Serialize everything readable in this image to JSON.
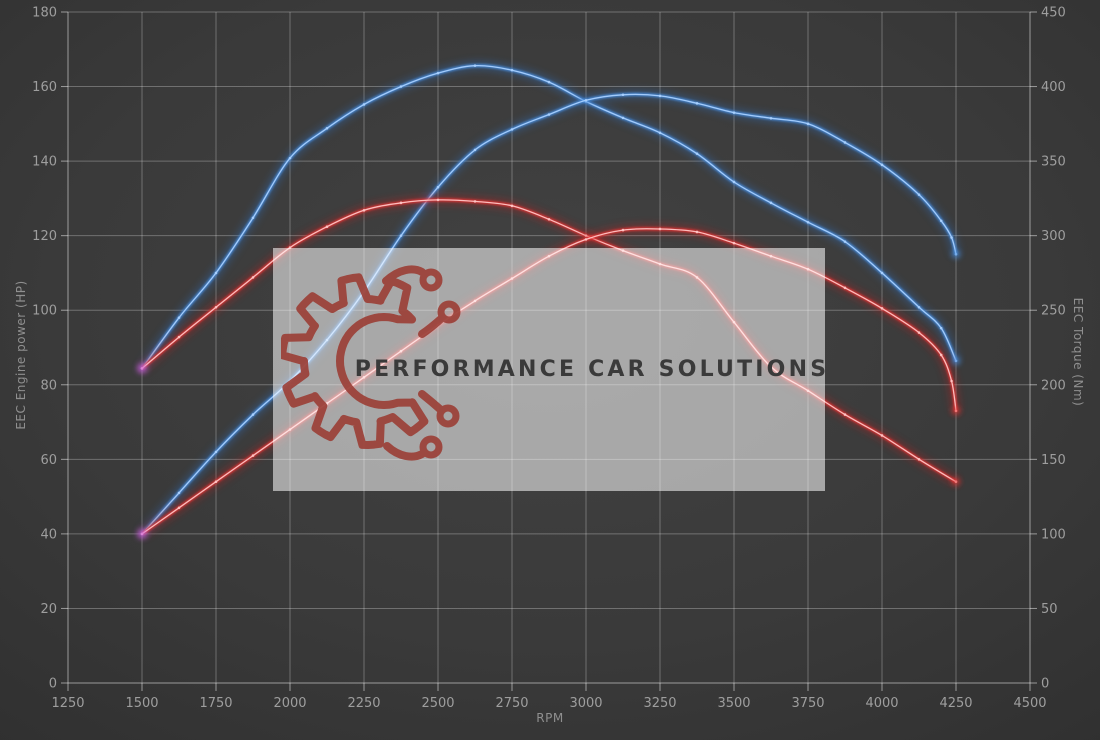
{
  "chart_data": {
    "type": "line",
    "xlabel": "RPM",
    "ylabel_left": "EEC Engine power (HP)",
    "ylabel_right": "EEC Torque (Nm)",
    "x_range": [
      1250,
      4500
    ],
    "x_tick_step": 250,
    "y_left_range": [
      0,
      180
    ],
    "y_left_tick_step": 20,
    "y_right_range": [
      0,
      450
    ],
    "y_right_tick_step": 50,
    "grid": true,
    "legend": "none",
    "colors": {
      "blue_core": "#a8d0ff",
      "blue_mid": "#4a8fe0",
      "blue_glow": "#2f6fc0",
      "red_core": "#ffc4c4",
      "red_mid": "#e83535",
      "red_glow": "#c41f1f",
      "start_glow": "#c95fe0",
      "grid_line": "rgba(255,255,255,0.28)",
      "axis_line": "rgba(255,255,255,0.5)",
      "tick_text": "#9e9e9e"
    },
    "series": [
      {
        "name": "torque-run-blue",
        "axis": "right",
        "unit": "Nm",
        "color": "blue",
        "points": [
          [
            1500,
            211
          ],
          [
            1625,
            245
          ],
          [
            1750,
            275
          ],
          [
            1875,
            312
          ],
          [
            2000,
            352
          ],
          [
            2125,
            372
          ],
          [
            2250,
            388
          ],
          [
            2375,
            400
          ],
          [
            2500,
            409
          ],
          [
            2625,
            414
          ],
          [
            2750,
            411
          ],
          [
            2875,
            403
          ],
          [
            3000,
            390
          ],
          [
            3125,
            379
          ],
          [
            3250,
            369
          ],
          [
            3375,
            355
          ],
          [
            3500,
            336
          ],
          [
            3625,
            322
          ],
          [
            3750,
            309
          ],
          [
            3875,
            296
          ],
          [
            4000,
            275
          ],
          [
            4125,
            252
          ],
          [
            4200,
            238
          ],
          [
            4250,
            216
          ]
        ]
      },
      {
        "name": "power-run-blue",
        "axis": "left",
        "unit": "HP",
        "color": "blue",
        "points": [
          [
            1500,
            40
          ],
          [
            1625,
            51
          ],
          [
            1750,
            62
          ],
          [
            1875,
            72
          ],
          [
            2000,
            81
          ],
          [
            2125,
            92
          ],
          [
            2250,
            105
          ],
          [
            2375,
            120
          ],
          [
            2500,
            133
          ],
          [
            2625,
            143
          ],
          [
            2750,
            148.5
          ],
          [
            2875,
            152.5
          ],
          [
            3000,
            156.3
          ],
          [
            3125,
            157.8
          ],
          [
            3250,
            157.5
          ],
          [
            3375,
            155.5
          ],
          [
            3500,
            153
          ],
          [
            3625,
            151.5
          ],
          [
            3750,
            150
          ],
          [
            3875,
            145
          ],
          [
            4000,
            139
          ],
          [
            4125,
            131
          ],
          [
            4200,
            124
          ],
          [
            4235,
            119.5
          ],
          [
            4250,
            115
          ]
        ]
      },
      {
        "name": "torque-run-red",
        "axis": "right",
        "unit": "Nm",
        "color": "red",
        "points": [
          [
            1500,
            211
          ],
          [
            1625,
            232
          ],
          [
            1750,
            252
          ],
          [
            1875,
            272
          ],
          [
            2000,
            292
          ],
          [
            2125,
            306
          ],
          [
            2250,
            317
          ],
          [
            2375,
            322
          ],
          [
            2500,
            324
          ],
          [
            2625,
            323
          ],
          [
            2750,
            320
          ],
          [
            2875,
            311
          ],
          [
            3000,
            300
          ],
          [
            3125,
            290
          ],
          [
            3250,
            281
          ],
          [
            3375,
            272
          ],
          [
            3500,
            242
          ],
          [
            3625,
            212
          ],
          [
            3750,
            196
          ],
          [
            3875,
            180
          ],
          [
            4000,
            166
          ],
          [
            4125,
            150
          ],
          [
            4250,
            135
          ]
        ]
      },
      {
        "name": "power-run-red",
        "axis": "left",
        "unit": "HP",
        "color": "red",
        "points": [
          [
            1500,
            40
          ],
          [
            1625,
            47
          ],
          [
            1750,
            54
          ],
          [
            1875,
            61
          ],
          [
            2000,
            68
          ],
          [
            2125,
            75
          ],
          [
            2250,
            82
          ],
          [
            2375,
            89
          ],
          [
            2500,
            96
          ],
          [
            2625,
            102.5
          ],
          [
            2750,
            108.5
          ],
          [
            2875,
            114.5
          ],
          [
            3000,
            119
          ],
          [
            3125,
            121.5
          ],
          [
            3250,
            121.8
          ],
          [
            3375,
            121
          ],
          [
            3500,
            118
          ],
          [
            3625,
            114.5
          ],
          [
            3750,
            111
          ],
          [
            3875,
            106
          ],
          [
            4000,
            100.5
          ],
          [
            4125,
            94
          ],
          [
            4200,
            88
          ],
          [
            4235,
            81
          ],
          [
            4250,
            73
          ]
        ]
      }
    ]
  },
  "watermark": {
    "text": "PERFORMANCE CAR SOLUTIONS",
    "logo": "gear-circuit-icon",
    "logo_color": "#9c4038",
    "box_color": "rgba(255,255,255,0.55)",
    "text_color": "#3a3a3a"
  }
}
